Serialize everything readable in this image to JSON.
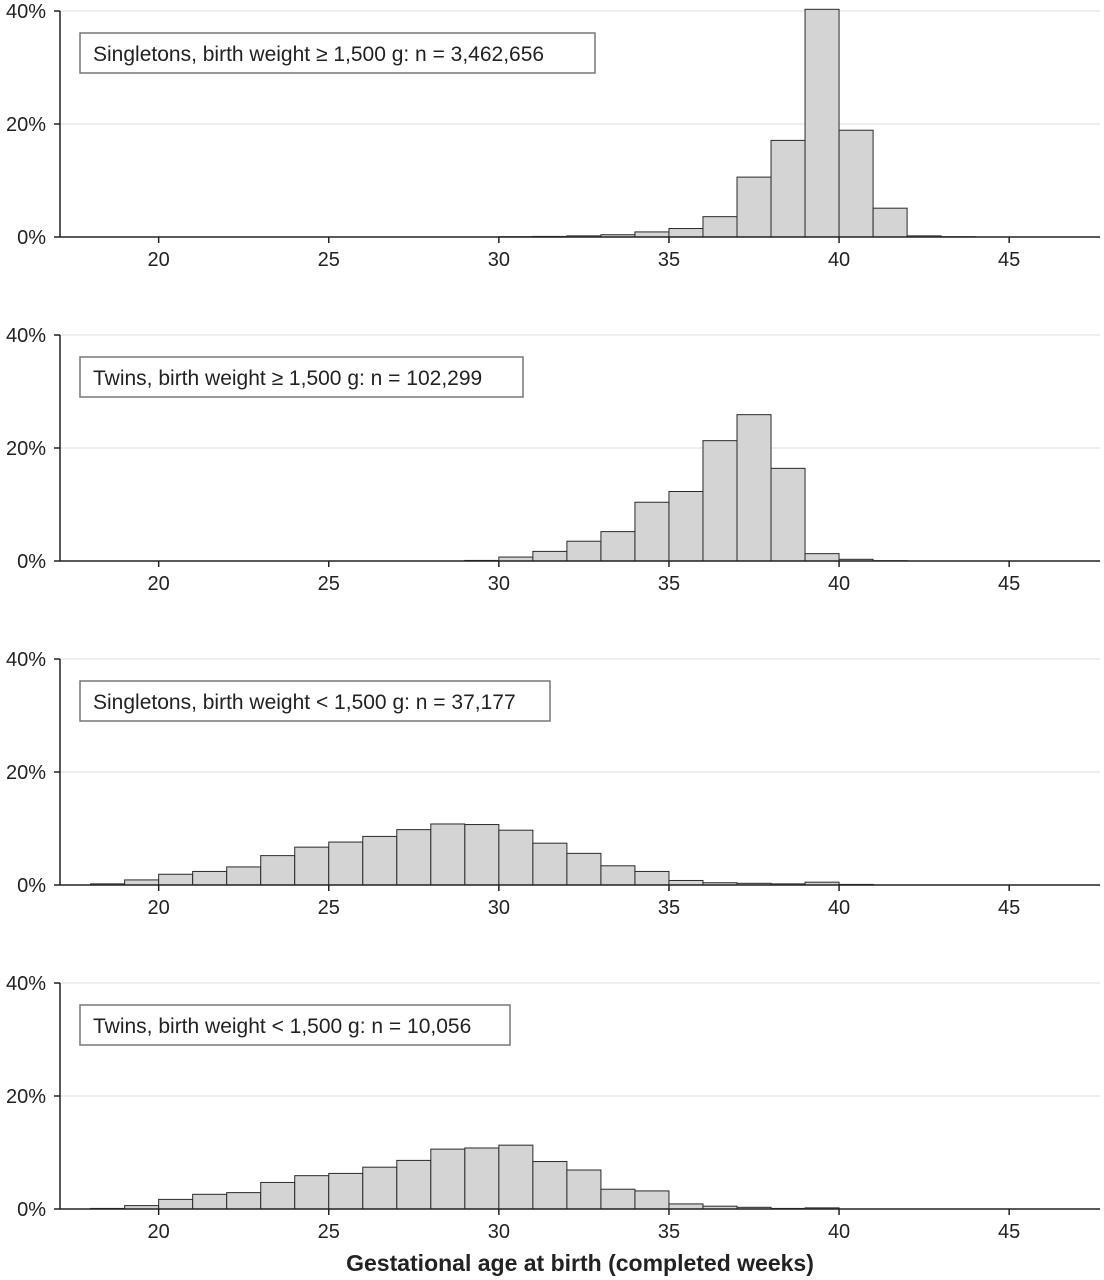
{
  "chart_data": [
    {
      "type": "bar",
      "legend": "Singletons, birth weight ≥ 1,500 g: n = 3,462,656",
      "x": [
        18,
        19,
        20,
        21,
        22,
        23,
        24,
        25,
        26,
        27,
        28,
        29,
        30,
        31,
        32,
        33,
        34,
        35,
        36,
        37,
        38,
        39,
        40,
        41,
        42,
        43,
        44,
        45
      ],
      "values": [
        0,
        0,
        0,
        0,
        0,
        0,
        0,
        0,
        0,
        0,
        0,
        0,
        0.05,
        0.1,
        0.2,
        0.4,
        0.9,
        1.5,
        3.6,
        10.6,
        17.1,
        40.3,
        18.9,
        5.1,
        0.2,
        0.05,
        0,
        0
      ],
      "ylim": [
        0,
        40
      ],
      "xlim": [
        17.1,
        46.7
      ],
      "yticks": [
        "0%",
        "20%",
        "40%"
      ],
      "xticks": [
        "20",
        "25",
        "30",
        "35",
        "40",
        "45"
      ]
    },
    {
      "type": "bar",
      "legend": "Twins, birth weight ≥ 1,500 g: n = 102,299",
      "x": [
        18,
        19,
        20,
        21,
        22,
        23,
        24,
        25,
        26,
        27,
        28,
        29,
        30,
        31,
        32,
        33,
        34,
        35,
        36,
        37,
        38,
        39,
        40,
        41,
        42,
        43,
        44,
        45
      ],
      "values": [
        0,
        0,
        0,
        0,
        0,
        0,
        0,
        0,
        0,
        0,
        0,
        0.1,
        0.7,
        1.7,
        3.5,
        5.2,
        10.4,
        12.3,
        21.3,
        25.9,
        16.4,
        1.3,
        0.3,
        0.05,
        0,
        0,
        0,
        0
      ],
      "ylim": [
        0,
        40
      ],
      "xlim": [
        17.1,
        46.7
      ],
      "yticks": [
        "0%",
        "20%",
        "40%"
      ],
      "xticks": [
        "20",
        "25",
        "30",
        "35",
        "40",
        "45"
      ]
    },
    {
      "type": "bar",
      "legend": "Singletons, birth weight < 1,500 g: n = 37,177",
      "x": [
        18,
        19,
        20,
        21,
        22,
        23,
        24,
        25,
        26,
        27,
        28,
        29,
        30,
        31,
        32,
        33,
        34,
        35,
        36,
        37,
        38,
        39,
        40,
        41,
        42,
        43,
        44,
        45
      ],
      "values": [
        0.2,
        0.9,
        1.9,
        2.4,
        3.2,
        5.2,
        6.7,
        7.6,
        8.6,
        9.8,
        10.8,
        10.7,
        9.7,
        7.4,
        5.6,
        3.4,
        2.4,
        0.8,
        0.4,
        0.3,
        0.2,
        0.5,
        0.1,
        0,
        0,
        0,
        0,
        0
      ],
      "ylim": [
        0,
        40
      ],
      "xlim": [
        17.1,
        46.7
      ],
      "yticks": [
        "0%",
        "20%",
        "40%"
      ],
      "xticks": [
        "20",
        "25",
        "30",
        "35",
        "40",
        "45"
      ]
    },
    {
      "type": "bar",
      "legend": "Twins, birth weight < 1,500 g: n = 10,056",
      "x": [
        18,
        19,
        20,
        21,
        22,
        23,
        24,
        25,
        26,
        27,
        28,
        29,
        30,
        31,
        32,
        33,
        34,
        35,
        36,
        37,
        38,
        39,
        40,
        41,
        42,
        43,
        44,
        45
      ],
      "values": [
        0.1,
        0.6,
        1.7,
        2.6,
        2.9,
        4.7,
        5.9,
        6.3,
        7.4,
        8.6,
        10.6,
        10.8,
        11.3,
        8.4,
        6.9,
        3.5,
        3.2,
        0.9,
        0.5,
        0.3,
        0.1,
        0.2,
        0,
        0,
        0,
        0,
        0,
        0
      ],
      "ylim": [
        0,
        40
      ],
      "xlim": [
        17.1,
        46.7
      ],
      "yticks": [
        "0%",
        "20%",
        "40%"
      ],
      "xticks": [
        "20",
        "25",
        "30",
        "35",
        "40",
        "45"
      ]
    }
  ],
  "xlabel": "Gestational age at birth (completed weeks)",
  "colors": {
    "bar_fill": "#d4d4d4",
    "bar_stroke": "#2a2a2a",
    "grid": "#dcdcdc",
    "axis": "#222222",
    "legend_border": "#777777"
  }
}
